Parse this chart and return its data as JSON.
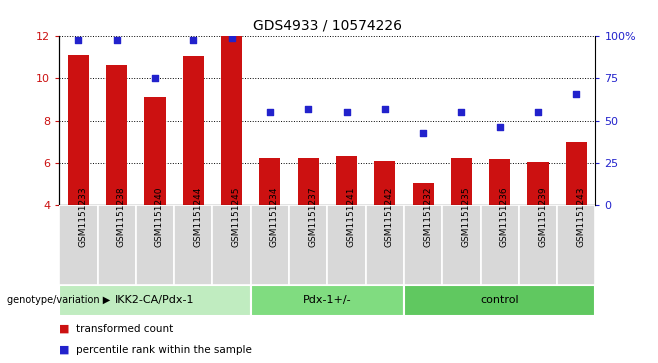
{
  "title": "GDS4933 / 10574226",
  "samples": [
    "GSM1151233",
    "GSM1151238",
    "GSM1151240",
    "GSM1151244",
    "GSM1151245",
    "GSM1151234",
    "GSM1151237",
    "GSM1151241",
    "GSM1151242",
    "GSM1151232",
    "GSM1151235",
    "GSM1151236",
    "GSM1151239",
    "GSM1151243"
  ],
  "bar_values": [
    11.1,
    10.65,
    9.1,
    11.05,
    12.0,
    6.25,
    6.25,
    6.35,
    6.1,
    5.05,
    6.25,
    6.2,
    6.05,
    7.0
  ],
  "dot_values": [
    98,
    98,
    75,
    98,
    99,
    55,
    57,
    55,
    57,
    43,
    55,
    46,
    55,
    66
  ],
  "groups": [
    {
      "label": "IKK2-CA/Pdx-1",
      "start": 0,
      "end": 5,
      "color": "#c0ecc0"
    },
    {
      "label": "Pdx-1+/-",
      "start": 5,
      "end": 9,
      "color": "#80dc80"
    },
    {
      "label": "control",
      "start": 9,
      "end": 14,
      "color": "#60c860"
    }
  ],
  "sample_box_color": "#d8d8d8",
  "bar_color": "#cc1111",
  "dot_color": "#2222cc",
  "ylim_left": [
    4,
    12
  ],
  "ylim_right": [
    0,
    100
  ],
  "yticks_left": [
    4,
    6,
    8,
    10,
    12
  ],
  "yticks_right": [
    0,
    25,
    50,
    75,
    100
  ],
  "ytick_labels_right": [
    "0",
    "25",
    "50",
    "75",
    "100%"
  ],
  "bar_width": 0.55,
  "legend_items": [
    {
      "label": "transformed count",
      "color": "#cc1111"
    },
    {
      "label": "percentile rank within the sample",
      "color": "#2222cc"
    }
  ],
  "genotype_label": "genotype/variation",
  "background_color": "#ffffff"
}
